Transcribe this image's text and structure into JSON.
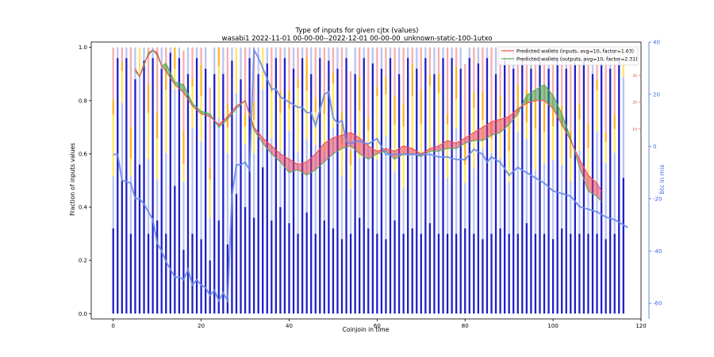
{
  "chart_data": {
    "type": "bar",
    "title": "Type of inputs for given cjtx (values)",
    "subtitle": "wasabi1 2022-11-01 00-00-00--2022-12-01 00-00-00_unknown-static-100-1utxo",
    "xlabel": "Coinjoin in time",
    "ylabel": "Fraction of inputs values",
    "y2label": "btc in mix",
    "xlim": [
      -5,
      120
    ],
    "ylim": [
      -0.02,
      1.02
    ],
    "y2lim": [
      -66,
      40
    ],
    "xticks": [
      "0",
      "20",
      "40",
      "60",
      "80",
      "100",
      "120"
    ],
    "yticks": [
      "0.0",
      "0.2",
      "0.4",
      "0.6",
      "0.8",
      "1.0"
    ],
    "y2ticks": [
      "-60",
      "-40",
      "-20",
      "0",
      "20",
      "40"
    ],
    "y3ticks": [
      "30",
      "20",
      "10"
    ],
    "legend": [
      {
        "name": "Predicted wallets (inputs, avg=10, factor=1.63)",
        "color": "#f05050"
      },
      {
        "name": "Predicted wallets (outputs, avg=10, factor=2.31)",
        "color": "#5aa85a"
      }
    ],
    "legend_position": "top-right",
    "bar_heights": [
      0.32,
      0.96,
      0.5,
      0.96,
      0.3,
      0.88,
      0.56,
      0.95,
      0.3,
      0.96,
      0.35,
      0.92,
      0.3,
      0.98,
      0.48,
      0.96,
      0.24,
      0.9,
      0.3,
      0.96,
      0.28,
      0.92,
      0.2,
      0.9,
      0.35,
      0.9,
      0.26,
      0.95,
      0.45,
      0.88,
      0.4,
      0.96,
      0.36,
      0.9,
      0.55,
      0.94,
      0.35,
      0.96,
      0.4,
      0.96,
      0.34,
      0.92,
      0.3,
      0.96,
      0.38,
      0.9,
      0.3,
      0.96,
      0.35,
      0.95,
      0.32,
      0.92,
      0.28,
      0.96,
      0.3,
      0.9,
      0.36,
      0.96,
      0.32,
      0.94,
      0.3,
      0.92,
      0.28,
      0.96,
      0.35,
      0.9,
      0.3,
      0.96,
      0.32,
      0.92,
      0.3,
      0.96,
      0.34,
      0.9,
      0.3,
      0.96,
      0.3,
      0.96,
      0.3,
      0.92,
      0.32,
      0.96,
      0.3,
      0.94,
      0.28,
      0.96,
      0.3,
      0.9,
      0.32,
      0.96,
      0.3,
      0.92,
      0.3,
      0.96,
      0.34,
      0.92,
      0.3,
      0.96,
      0.3,
      0.92,
      0.28,
      0.96,
      0.32,
      0.92,
      0.3,
      0.94,
      0.3,
      0.96,
      0.3,
      0.9,
      0.3,
      0.94,
      0.28,
      0.92,
      0.3,
      0.96,
      0.51
    ],
    "btc_in_mix_x": [
      0,
      1,
      2,
      4,
      5,
      6,
      7,
      9,
      10,
      11,
      12,
      13,
      14,
      15,
      16,
      17,
      18,
      19,
      20,
      21,
      22,
      23,
      24,
      25,
      26,
      27,
      28,
      29,
      30,
      31,
      32,
      33,
      34,
      35,
      36,
      37,
      38,
      39,
      40,
      41,
      42,
      43,
      44,
      45,
      46,
      47,
      48,
      49,
      50,
      51,
      52,
      53,
      54,
      55,
      56,
      58,
      60,
      62,
      64,
      66,
      68,
      70,
      72,
      74,
      76,
      78,
      80,
      82,
      84,
      85,
      86,
      88,
      90,
      92,
      94,
      96,
      98,
      100,
      102,
      104,
      106,
      108,
      110,
      112,
      114,
      116,
      117
    ],
    "btc_in_mix_y": [
      -3,
      -3,
      -13,
      -14,
      -20,
      -20,
      -22,
      -28,
      -37,
      -40,
      -44,
      -47,
      -50,
      -50,
      -51,
      -47,
      -53,
      -51,
      -53,
      -54,
      -57,
      -55,
      -59,
      -56,
      -59,
      -19,
      -7,
      -7,
      -6,
      -9,
      37,
      34,
      30,
      26,
      22,
      22,
      19,
      18,
      17,
      16,
      15,
      15,
      13,
      13,
      8,
      14,
      20,
      21,
      11,
      9,
      10,
      2,
      1,
      2,
      2,
      1,
      3,
      -3,
      -3,
      -3,
      -3,
      -3,
      -3,
      -4,
      -4,
      -5,
      -5,
      -1,
      -3,
      -6,
      -4,
      -6,
      -11,
      -8,
      -10,
      -12,
      -14,
      -17,
      -18,
      -19,
      -23,
      -24,
      -25,
      -27,
      -28,
      -30,
      -31
    ],
    "pred_inputs_x": [
      5,
      6,
      7,
      8,
      9,
      10,
      11,
      12,
      14,
      16,
      18,
      20,
      22,
      24,
      26,
      28,
      30,
      32,
      34,
      36,
      38,
      40,
      42,
      44,
      46,
      48,
      50,
      52,
      54,
      56,
      58,
      60,
      62,
      64,
      66,
      68,
      70,
      72,
      74,
      76,
      78,
      80,
      82,
      84,
      86,
      88,
      90,
      92,
      94,
      96,
      98,
      100,
      102,
      104,
      106,
      108,
      110,
      111
    ],
    "pred_inputs_y": [
      0.92,
      0.89,
      0.94,
      0.97,
      0.99,
      0.98,
      0.93,
      0.91,
      0.86,
      0.83,
      0.78,
      0.75,
      0.74,
      0.71,
      0.74,
      0.78,
      0.8,
      0.7,
      0.66,
      0.63,
      0.6,
      0.58,
      0.56,
      0.57,
      0.6,
      0.64,
      0.66,
      0.67,
      0.68,
      0.66,
      0.63,
      0.61,
      0.62,
      0.61,
      0.63,
      0.62,
      0.6,
      0.62,
      0.63,
      0.65,
      0.64,
      0.66,
      0.68,
      0.7,
      0.72,
      0.73,
      0.74,
      0.77,
      0.79,
      0.8,
      0.8,
      0.77,
      0.71,
      0.65,
      0.58,
      0.52,
      0.49,
      0.46
    ],
    "pred_outputs_y": [
      0.91,
      0.89,
      0.93,
      0.98,
      0.99,
      0.97,
      0.93,
      0.94,
      0.87,
      0.86,
      0.79,
      0.76,
      0.75,
      0.7,
      0.73,
      0.77,
      0.8,
      0.69,
      0.64,
      0.6,
      0.57,
      0.53,
      0.54,
      0.52,
      0.54,
      0.57,
      0.6,
      0.62,
      0.63,
      0.6,
      0.58,
      0.6,
      0.61,
      0.58,
      0.6,
      0.6,
      0.59,
      0.61,
      0.61,
      0.62,
      0.62,
      0.64,
      0.65,
      0.65,
      0.67,
      0.68,
      0.71,
      0.75,
      0.82,
      0.84,
      0.86,
      0.82,
      0.75,
      0.66,
      0.55,
      0.46,
      0.44,
      0.42
    ]
  }
}
